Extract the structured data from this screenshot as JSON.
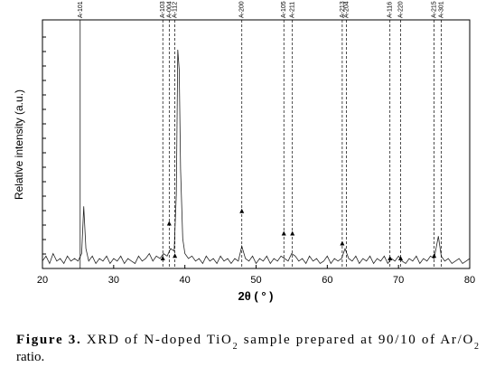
{
  "chart_data": {
    "type": "line",
    "xlabel": "2θ ( ° )",
    "ylabel": "Relative intensity (a.u.)",
    "xlim": [
      20,
      80
    ],
    "xticks": [
      20,
      30,
      40,
      50,
      60,
      70,
      80
    ],
    "ylim": [
      0,
      100
    ],
    "color": "#222222",
    "x": [
      20,
      20.5,
      21,
      21.5,
      22,
      22.5,
      23,
      23.5,
      24,
      24.5,
      25,
      25.5,
      25.8,
      26.1,
      26.5,
      27,
      27.5,
      28,
      28.5,
      29,
      29.5,
      30,
      30.5,
      31,
      31.5,
      32,
      32.5,
      33,
      33.5,
      34,
      34.5,
      35,
      35.5,
      36,
      36.5,
      37,
      37.5,
      38,
      38.5,
      38.8,
      39,
      39.2,
      39.4,
      39.7,
      40,
      40.5,
      41,
      41.5,
      42,
      42.5,
      43,
      43.5,
      44,
      44.5,
      45,
      45.5,
      46,
      46.5,
      47,
      47.5,
      48,
      48.5,
      49,
      49.5,
      50,
      50.5,
      51,
      51.5,
      52,
      52.5,
      53,
      53.5,
      54,
      54.5,
      55,
      55.5,
      56,
      56.5,
      57,
      57.5,
      58,
      58.5,
      59,
      59.5,
      60,
      60.5,
      61,
      61.5,
      62,
      62.5,
      63,
      63.5,
      64,
      64.5,
      65,
      65.5,
      66,
      66.5,
      67,
      67.5,
      68,
      68.5,
      69,
      69.5,
      70,
      70.5,
      71,
      71.5,
      72,
      72.5,
      73,
      73.5,
      74,
      74.5,
      75,
      75.6,
      76,
      76.5,
      77,
      77.5,
      78,
      78.5,
      79,
      79.5,
      80
    ],
    "values": [
      3,
      5,
      2,
      6,
      3,
      4,
      2,
      5,
      3,
      4,
      3,
      6,
      25,
      8,
      3,
      5,
      2,
      4,
      3,
      5,
      2,
      4,
      3,
      5,
      2,
      4,
      3,
      2,
      5,
      3,
      4,
      6,
      3,
      5,
      4,
      6,
      5,
      8,
      7,
      30,
      88,
      80,
      40,
      12,
      6,
      4,
      5,
      3,
      4,
      2,
      5,
      3,
      4,
      2,
      5,
      3,
      4,
      2,
      4,
      3,
      9,
      4,
      3,
      5,
      2,
      4,
      3,
      5,
      2,
      4,
      3,
      5,
      4,
      3,
      6,
      5,
      3,
      4,
      2,
      5,
      3,
      4,
      2,
      3,
      5,
      2,
      4,
      3,
      4,
      8,
      4,
      3,
      5,
      2,
      4,
      3,
      5,
      2,
      4,
      3,
      5,
      2,
      4,
      3,
      5,
      3,
      2,
      4,
      3,
      5,
      2,
      4,
      3,
      5,
      4,
      13,
      5,
      3,
      4,
      2,
      3,
      4,
      2,
      3,
      4
    ],
    "peaks": [
      {
        "label": "A-101",
        "x": 25.3,
        "y": null,
        "style": "solid"
      },
      {
        "label": "A-103",
        "x": 36.9,
        "y": 4,
        "style": "dashed"
      },
      {
        "label": "A-004",
        "x": 37.8,
        "y": 18,
        "style": "dashed"
      },
      {
        "label": "A-112",
        "x": 38.6,
        "y": 5,
        "style": "dashed"
      },
      {
        "label": "A-200",
        "x": 48.0,
        "y": 23,
        "style": "dashed"
      },
      {
        "label": "A-105",
        "x": 53.9,
        "y": 14,
        "style": "dashed"
      },
      {
        "label": "A-211",
        "x": 55.1,
        "y": 14,
        "style": "dashed"
      },
      {
        "label": "A-213",
        "x": 62.1,
        "y": 10,
        "style": "dashed"
      },
      {
        "label": "A-204",
        "x": 62.7,
        "y": null,
        "style": "dashed"
      },
      {
        "label": "A-116",
        "x": 68.8,
        "y": 4,
        "style": "dashed"
      },
      {
        "label": "A-220",
        "x": 70.3,
        "y": 4,
        "style": "dashed"
      },
      {
        "label": "A-215",
        "x": 75.0,
        "y": 5,
        "style": "dashed"
      },
      {
        "label": "A-301",
        "x": 76.0,
        "y": null,
        "style": "dashed"
      }
    ]
  },
  "caption": {
    "label": "Figure 3.",
    "line1": [
      "XRD of N-doped TiO",
      "2",
      " sample prepared at 90/10 of Ar/O",
      "2"
    ],
    "line2": "ratio."
  }
}
